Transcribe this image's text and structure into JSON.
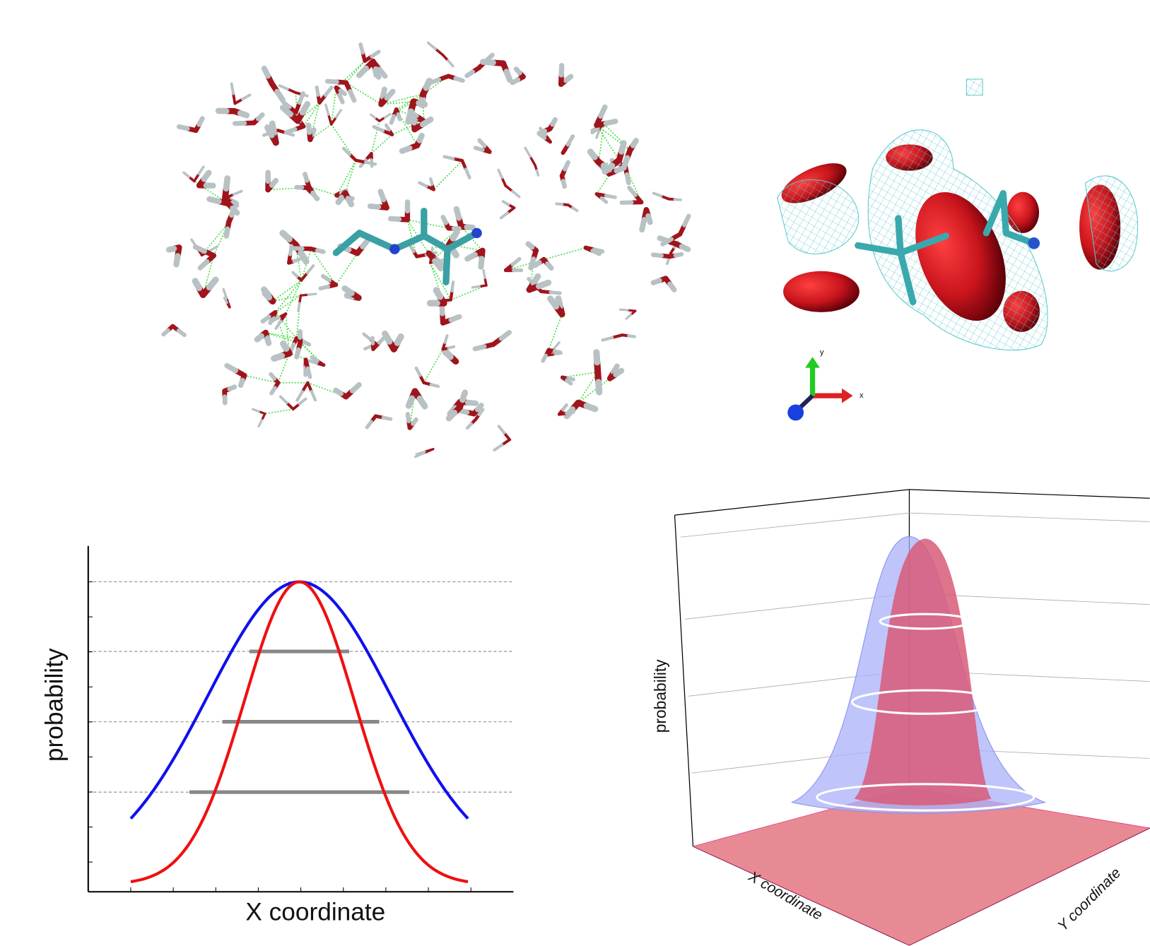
{
  "molecular_view": {
    "axis_y": "y",
    "axis_x": "x"
  },
  "plot_2d": {
    "y_label": "probability",
    "x_label": "X coordinate"
  },
  "plot_3d": {
    "z_label": "probability",
    "x_label": "X coordinate",
    "y_label": "Y coordinate"
  }
}
